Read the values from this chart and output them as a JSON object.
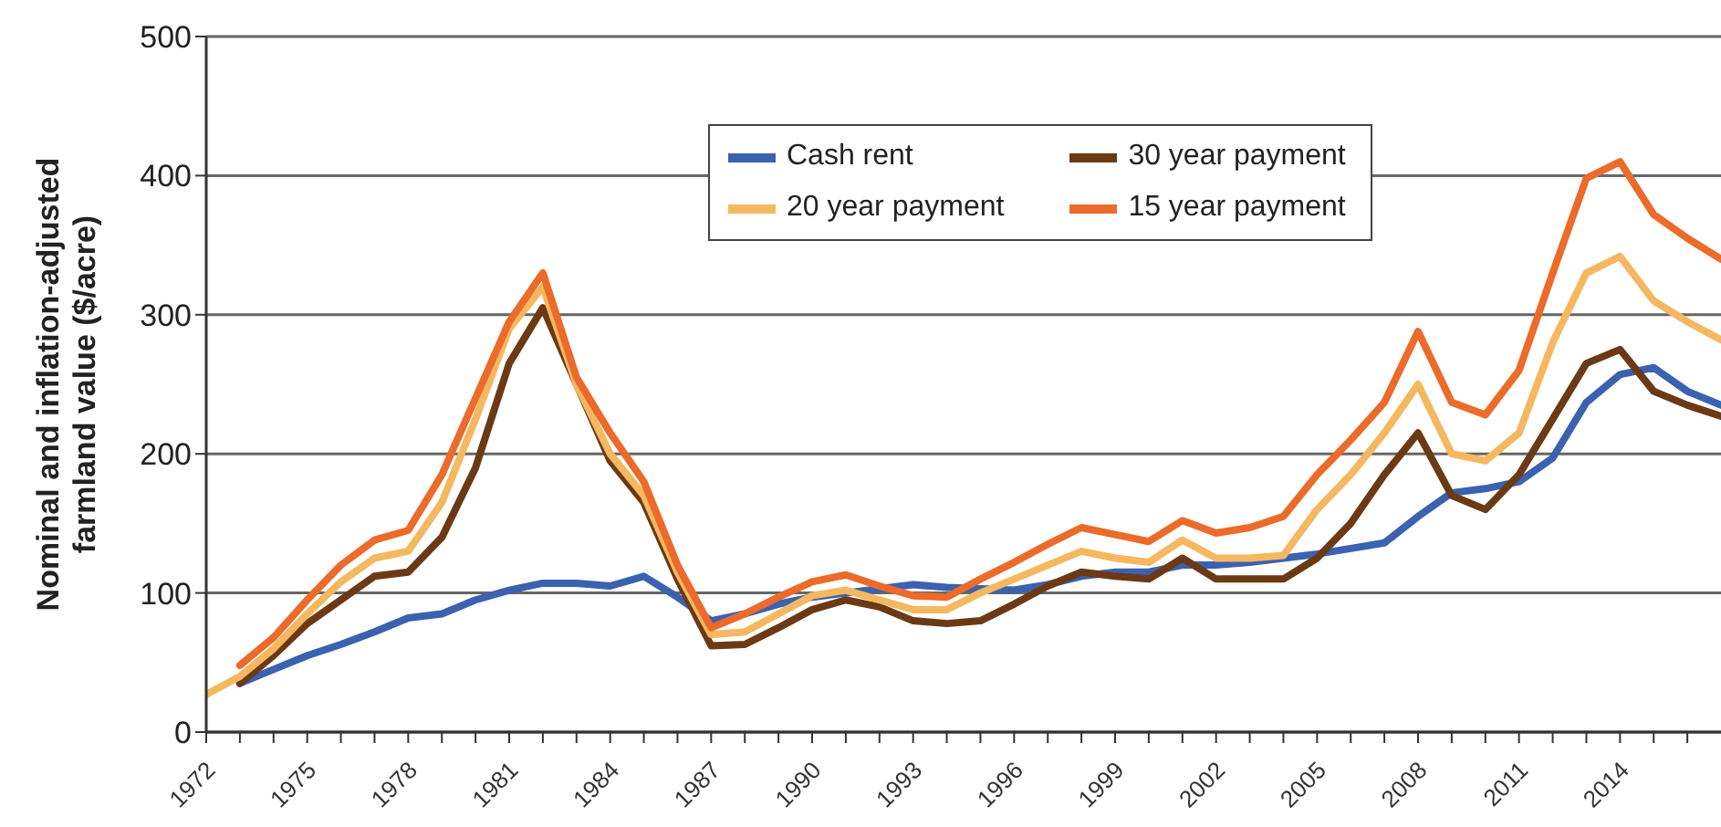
{
  "chart_data": {
    "type": "line",
    "ylabel": "Nominal and inflation-adjusted\nfarmland value ($/acre)",
    "xlim": [
      1972,
      2017
    ],
    "ylim": [
      0,
      500
    ],
    "yticks": [
      0,
      100,
      200,
      300,
      400,
      500
    ],
    "xticks": [
      1972,
      {
        "value": 1973,
        "label": null
      },
      {
        "value": 1974,
        "label": null
      },
      1975,
      {
        "value": 1976,
        "label": null
      },
      {
        "value": 1977,
        "label": null
      },
      1978,
      {
        "value": 1979,
        "label": null
      },
      {
        "value": 1980,
        "label": null
      },
      1981,
      {
        "value": 1982,
        "label": null
      },
      {
        "value": 1983,
        "label": null
      },
      1984,
      {
        "value": 1985,
        "label": null
      },
      {
        "value": 1986,
        "label": null
      },
      1987,
      {
        "value": 1988,
        "label": null
      },
      {
        "value": 1989,
        "label": null
      },
      1990,
      {
        "value": 1991,
        "label": null
      },
      {
        "value": 1992,
        "label": null
      },
      1993,
      {
        "value": 1994,
        "label": null
      },
      {
        "value": 1995,
        "label": null
      },
      1996,
      {
        "value": 1997,
        "label": null
      },
      {
        "value": 1998,
        "label": null
      },
      1999,
      {
        "value": 2000,
        "label": null
      },
      {
        "value": 2001,
        "label": null
      },
      2002,
      {
        "value": 2003,
        "label": null
      },
      {
        "value": 2004,
        "label": null
      },
      2005,
      {
        "value": 2006,
        "label": null
      },
      {
        "value": 2007,
        "label": null
      },
      2008,
      {
        "value": 2009,
        "label": null
      },
      {
        "value": 2010,
        "label": null
      },
      2011,
      {
        "value": 2012,
        "label": null
      },
      {
        "value": 2013,
        "label": null
      },
      2014,
      {
        "value": 2015,
        "label": null
      },
      {
        "value": 2016,
        "label": null
      }
    ],
    "grid": "y",
    "legend": "top",
    "marker": "none",
    "line_style": "solid",
    "series": [
      {
        "name": "Cash rent",
        "color": "#3a62b0",
        "x": [
          1973,
          1974,
          1975,
          1976,
          1977,
          1978,
          1979,
          1980,
          1981,
          1982,
          1983,
          1984,
          1985,
          1986,
          1987,
          1988,
          1989,
          1990,
          1991,
          1992,
          1993,
          1994,
          1995,
          1996,
          1997,
          1998,
          1999,
          2000,
          2001,
          2002,
          2003,
          2004,
          2005,
          2006,
          2007,
          2008,
          2009,
          2010,
          2011,
          2012,
          2013,
          2014,
          2015,
          2016,
          2017
        ],
        "values": [
          35,
          45,
          55,
          63,
          72,
          82,
          85,
          95,
          102,
          107,
          107,
          105,
          112,
          97,
          80,
          85,
          92,
          97,
          100,
          103,
          106,
          104,
          103,
          102,
          106,
          112,
          115,
          115,
          120,
          120,
          122,
          125,
          128,
          132,
          136,
          155,
          172,
          175,
          180,
          197,
          237,
          257,
          262,
          245,
          235
        ]
      },
      {
        "name": "30 year payment",
        "color": "#6b3a14",
        "x": [
          1973,
          1974,
          1975,
          1976,
          1977,
          1978,
          1979,
          1980,
          1981,
          1982,
          1983,
          1984,
          1985,
          1986,
          1987,
          1988,
          1989,
          1990,
          1991,
          1992,
          1993,
          1994,
          1995,
          1996,
          1997,
          1998,
          1999,
          2000,
          2001,
          2002,
          2003,
          2004,
          2005,
          2006,
          2007,
          2008,
          2009,
          2010,
          2011,
          2012,
          2013,
          2014,
          2015,
          2016,
          2017
        ],
        "values": [
          35,
          55,
          78,
          95,
          112,
          115,
          140,
          190,
          265,
          305,
          250,
          195,
          165,
          110,
          62,
          63,
          75,
          88,
          95,
          90,
          80,
          78,
          80,
          92,
          105,
          115,
          112,
          110,
          125,
          110,
          110,
          110,
          125,
          150,
          185,
          215,
          170,
          160,
          185,
          225,
          265,
          275,
          245,
          235,
          227
        ]
      },
      {
        "name": "20 year payment",
        "color": "#f5b860",
        "x": [
          1972,
          1973,
          1974,
          1975,
          1976,
          1977,
          1978,
          1979,
          1980,
          1981,
          1982,
          1983,
          1984,
          1985,
          1986,
          1987,
          1988,
          1989,
          1990,
          1991,
          1992,
          1993,
          1994,
          1995,
          1996,
          1997,
          1998,
          1999,
          2000,
          2001,
          2002,
          2003,
          2004,
          2005,
          2006,
          2007,
          2008,
          2009,
          2010,
          2011,
          2012,
          2013,
          2014,
          2015,
          2016,
          2017
        ],
        "values": [
          27,
          40,
          60,
          85,
          108,
          125,
          130,
          165,
          225,
          290,
          320,
          250,
          200,
          170,
          115,
          70,
          72,
          85,
          98,
          102,
          95,
          88,
          88,
          100,
          110,
          120,
          130,
          125,
          122,
          138,
          125,
          125,
          127,
          160,
          185,
          215,
          250,
          200,
          195,
          215,
          280,
          330,
          342,
          310,
          295,
          282
        ]
      },
      {
        "name": "15 year payment",
        "color": "#ec6a2a",
        "x": [
          1973,
          1974,
          1975,
          1976,
          1977,
          1978,
          1979,
          1980,
          1981,
          1982,
          1983,
          1984,
          1985,
          1986,
          1987,
          1988,
          1989,
          1990,
          1991,
          1992,
          1993,
          1994,
          1995,
          1996,
          1997,
          1998,
          1999,
          2000,
          2001,
          2002,
          2003,
          2004,
          2005,
          2006,
          2007,
          2008,
          2009,
          2010,
          2011,
          2012,
          2013,
          2014,
          2015,
          2016,
          2017
        ],
        "values": [
          48,
          68,
          95,
          120,
          138,
          145,
          185,
          240,
          295,
          330,
          255,
          215,
          180,
          120,
          75,
          85,
          97,
          108,
          113,
          105,
          98,
          97,
          110,
          122,
          135,
          147,
          142,
          137,
          152,
          143,
          147,
          155,
          185,
          210,
          237,
          288,
          237,
          228,
          260,
          330,
          398,
          410,
          372,
          355,
          340
        ]
      }
    ]
  }
}
